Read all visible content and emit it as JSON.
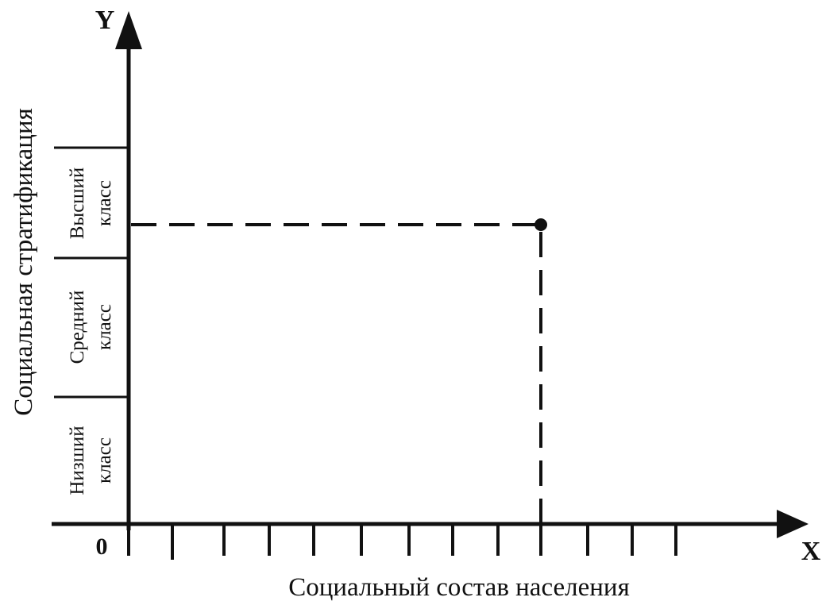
{
  "y_axis": {
    "letter": "Y",
    "title": "Социальная стратификация"
  },
  "x_axis": {
    "letter": "X",
    "title": "Социальный состав населения",
    "origin": "0",
    "tick_count": 12
  },
  "bands": [
    {
      "line1": "Низший",
      "line2": "класс"
    },
    {
      "line1": "Средний",
      "line2": "класс"
    },
    {
      "line1": "Высший",
      "line2": "класс"
    }
  ],
  "point": {
    "x_tick": 9,
    "band": "Высший класс"
  },
  "colors": {
    "ink": "#111111",
    "background": "#ffffff"
  }
}
